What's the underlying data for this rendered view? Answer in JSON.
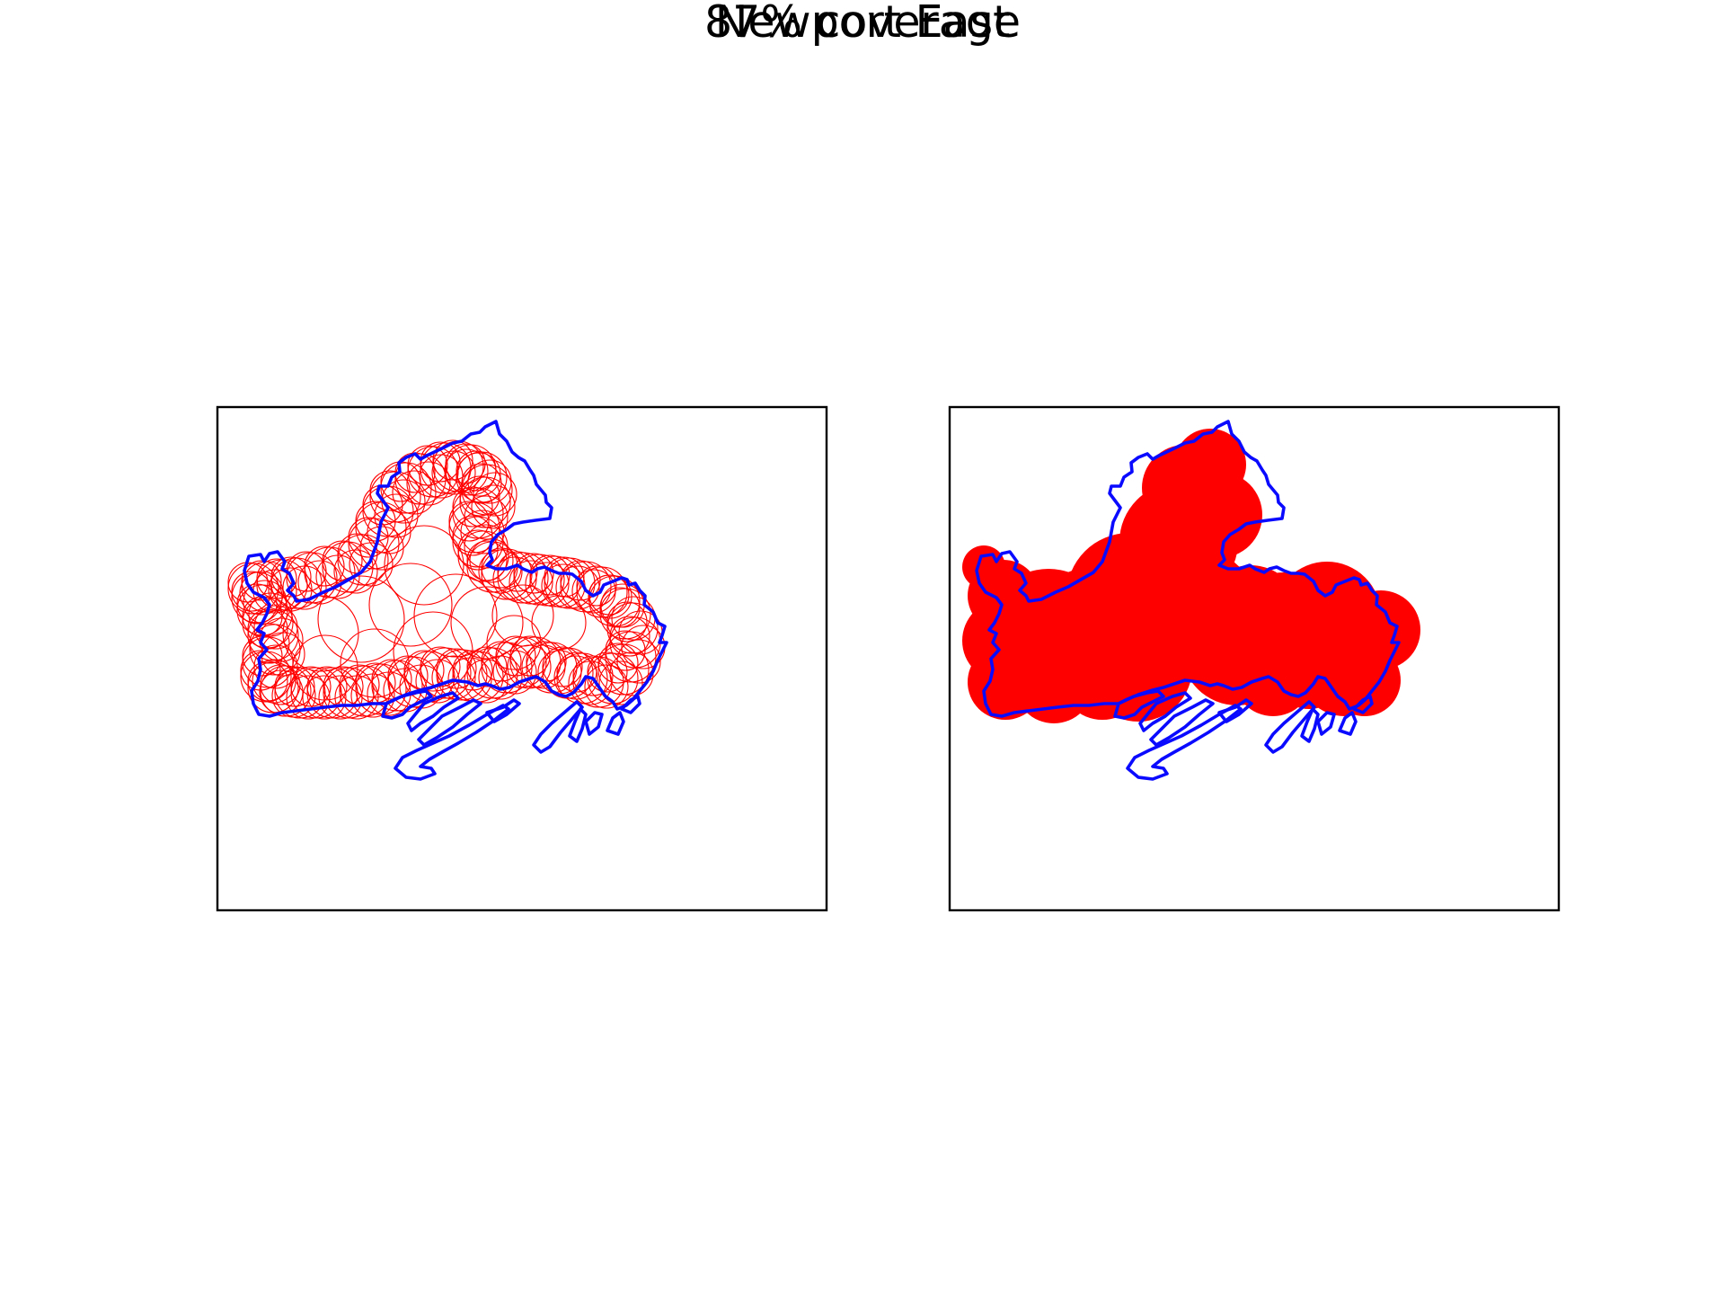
{
  "figure": {
    "title": "Newport East",
    "subtitle": "87% coverage"
  },
  "colors": {
    "boundary": "#0a0aff",
    "coverage": "#ff0000",
    "frame": "#000000",
    "background": "#ffffff"
  },
  "panels": [
    {
      "id": "left",
      "style": "circle-outlines"
    },
    {
      "id": "right",
      "style": "filled-coverage"
    }
  ]
}
